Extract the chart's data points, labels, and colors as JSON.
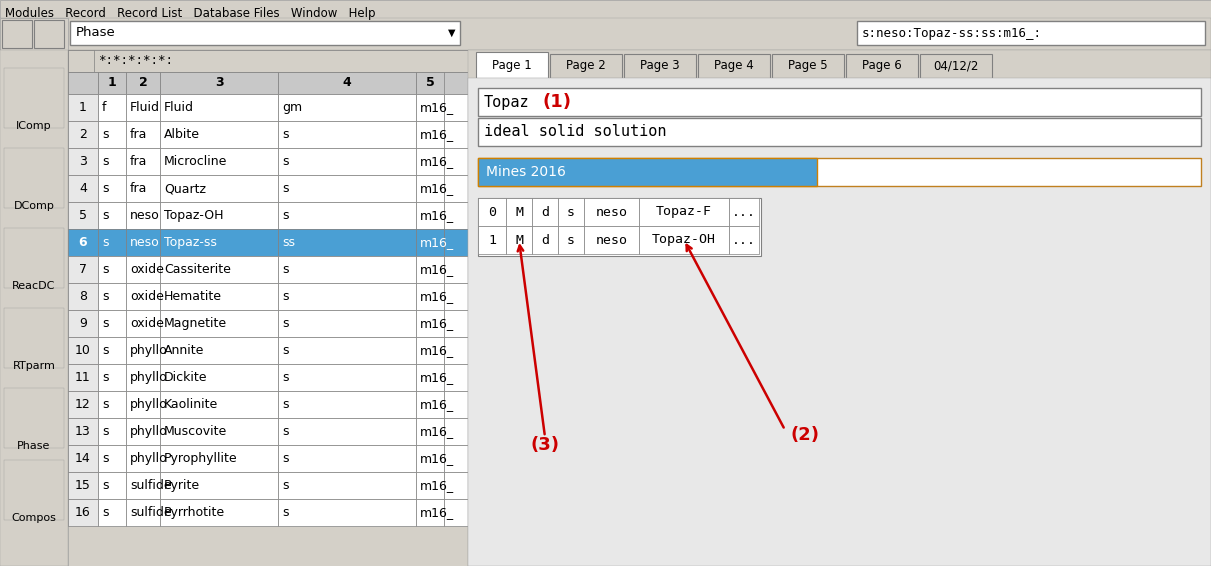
{
  "bg_color": "#d4d0c8",
  "white": "#ffffff",
  "highlight_blue": "#4a9fd4",
  "table_header_bg": "#c8c8c8",
  "table_border": "#808080",
  "menu_text": "Modules   Record   Record List   Database Files   Window   Help",
  "toolbar_dropdown": "Phase",
  "address_bar": "s:neso:Topaz-ss:ss:m16_:",
  "filter_text": "*:*:*:*:*:",
  "col_headers": [
    "1",
    "2",
    "3",
    "4",
    "5"
  ],
  "rows": [
    [
      "1",
      "f",
      "Fluid",
      "Fluid",
      "gm",
      "m16_"
    ],
    [
      "2",
      "s",
      "fra",
      "Albite",
      "s",
      "m16_"
    ],
    [
      "3",
      "s",
      "fra",
      "Microcline",
      "s",
      "m16_"
    ],
    [
      "4",
      "s",
      "fra",
      "Quartz",
      "s",
      "m16_"
    ],
    [
      "5",
      "s",
      "neso",
      "Topaz-OH",
      "s",
      "m16_"
    ],
    [
      "6",
      "s",
      "neso",
      "Topaz-ss",
      "ss",
      "m16_"
    ],
    [
      "7",
      "s",
      "oxide",
      "Cassiterite",
      "s",
      "m16_"
    ],
    [
      "8",
      "s",
      "oxide",
      "Hematite",
      "s",
      "m16_"
    ],
    [
      "9",
      "s",
      "oxide",
      "Magnetite",
      "s",
      "m16_"
    ],
    [
      "10",
      "s",
      "phyllo",
      "Annite",
      "s",
      "m16_"
    ],
    [
      "11",
      "s",
      "phyllo",
      "Dickite",
      "s",
      "m16_"
    ],
    [
      "12",
      "s",
      "phyllo",
      "Kaolinite",
      "s",
      "m16_"
    ],
    [
      "13",
      "s",
      "phyllo",
      "Muscovite",
      "s",
      "m16_"
    ],
    [
      "14",
      "s",
      "phyllo",
      "Pyrophyllite",
      "s",
      "m16_"
    ],
    [
      "15",
      "s",
      "sulfide",
      "Pyrite",
      "s",
      "m16_"
    ],
    [
      "16",
      "s",
      "sulfide",
      "Pyrrhotite",
      "s",
      "m16_"
    ]
  ],
  "highlighted_row": 5,
  "page_tabs": [
    "Page 1",
    "Page 2",
    "Page 3",
    "Page 4",
    "Page 5",
    "Page 6",
    "04/12/2"
  ],
  "phase_name": "Topaz",
  "phase_desc": "ideal solid solution",
  "mines_label": "Mines 2016",
  "endmember_rows": [
    [
      "0",
      "M",
      "d",
      "s",
      "neso",
      "Topaz-F",
      "..."
    ],
    [
      "1",
      "M",
      "d",
      "s",
      "neso",
      "Topaz-OH",
      "..."
    ]
  ],
  "annotation_1": "(1)",
  "annotation_2": "(2)",
  "annotation_3": "(3)",
  "sidebar_labels": [
    "IComp",
    "DComp",
    "ReacDC",
    "RTparm",
    "Phase",
    "Compos"
  ],
  "red_color": "#cc0000",
  "light_gray": "#e8e8e8",
  "mid_gray": "#c0c0c0",
  "dark_gray": "#808080"
}
